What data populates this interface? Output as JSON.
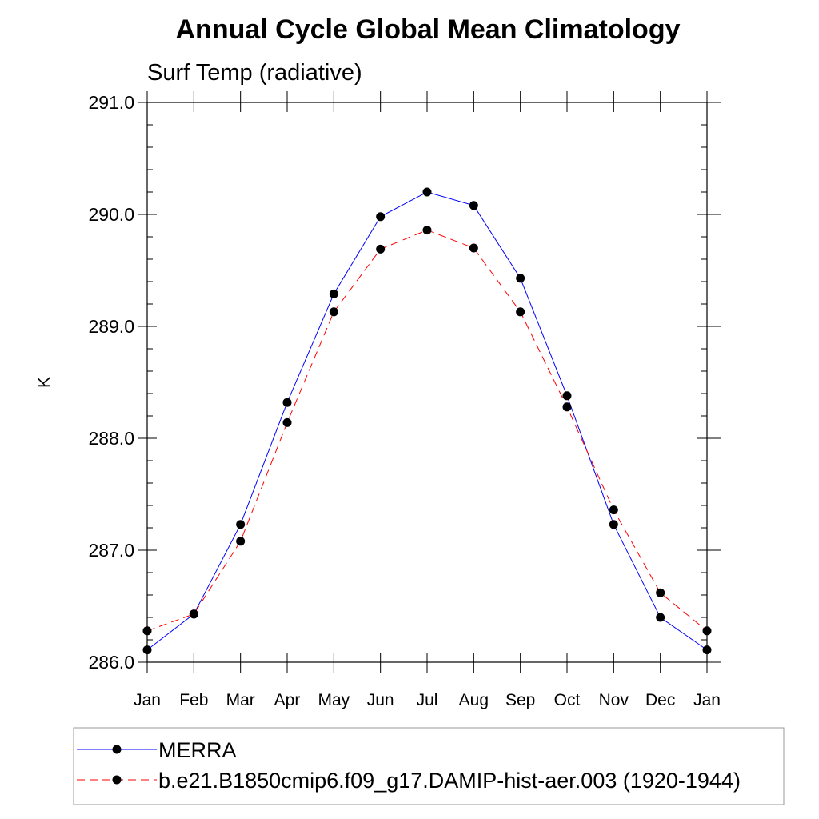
{
  "chart_data": {
    "type": "line",
    "title": "Annual Cycle Global Mean Climatology",
    "subtitle": "Surf Temp (radiative)",
    "xlabel": "",
    "ylabel": "K",
    "categories": [
      "Jan",
      "Feb",
      "Mar",
      "Apr",
      "May",
      "Jun",
      "Jul",
      "Aug",
      "Sep",
      "Oct",
      "Nov",
      "Dec",
      "Jan"
    ],
    "ylim": [
      286.0,
      291.0
    ],
    "yticks": [
      "286.0",
      "287.0",
      "288.0",
      "289.0",
      "290.0",
      "291.0"
    ],
    "series": [
      {
        "name": "MERRA",
        "color": "#0000ff",
        "dash": "solid",
        "values": [
          286.11,
          286.43,
          287.23,
          288.32,
          289.29,
          289.98,
          290.2,
          290.08,
          289.43,
          288.38,
          287.23,
          286.4,
          286.11
        ]
      },
      {
        "name": "b.e21.B1850cmip6.f09_g17.DAMIP-hist-aer.003 (1920-1944)",
        "color": "#ff0000",
        "dash": "dashed",
        "values": [
          286.28,
          286.43,
          287.08,
          288.14,
          289.13,
          289.69,
          289.86,
          289.7,
          289.13,
          288.28,
          287.36,
          286.62,
          286.28
        ]
      }
    ],
    "grid": false,
    "legend": "bottom"
  }
}
